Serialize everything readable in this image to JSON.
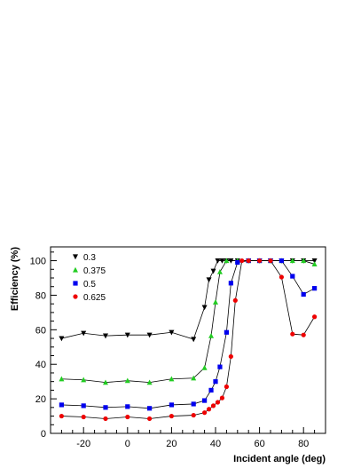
{
  "chart_data": {
    "type": "line",
    "xlabel": "Incident angle (deg)",
    "ylabel": "Efficiency (%)",
    "xlim": [
      -35,
      90
    ],
    "ylim": [
      0,
      108
    ],
    "xticks": [
      -20,
      0,
      20,
      40,
      60,
      80
    ],
    "yticks": [
      0,
      20,
      40,
      60,
      80,
      100
    ],
    "legend_position": "top-left",
    "grid": false,
    "series": [
      {
        "name": "0.3",
        "color": "#000000",
        "marker": "triangle-down",
        "x": [
          -30,
          -20,
          -10,
          0,
          10,
          20,
          30,
          35,
          37,
          39,
          41,
          43,
          45,
          47,
          50,
          55,
          60,
          65,
          70,
          75,
          80,
          85
        ],
        "y": [
          55,
          58,
          56.5,
          57,
          57,
          58.5,
          54.5,
          73,
          89,
          94,
          100,
          100,
          100,
          100,
          100,
          100,
          100,
          100,
          100,
          100,
          100,
          100
        ]
      },
      {
        "name": "0.375",
        "color": "#22cc22",
        "marker": "triangle-up",
        "x": [
          -30,
          -20,
          -10,
          0,
          10,
          20,
          30,
          35,
          38,
          40,
          42,
          45,
          50,
          55,
          60,
          65,
          70,
          75,
          80,
          85
        ],
        "y": [
          31.5,
          31,
          29.5,
          30.5,
          29.5,
          31.5,
          32,
          38,
          56.5,
          76,
          93.5,
          100,
          100,
          100,
          100,
          100,
          100,
          100,
          100,
          98
        ]
      },
      {
        "name": "0.5",
        "color": "#0000ee",
        "marker": "square",
        "x": [
          -30,
          -20,
          -10,
          0,
          10,
          20,
          30,
          35,
          38,
          40,
          42,
          45,
          47,
          50,
          55,
          60,
          65,
          70,
          75,
          80,
          85
        ],
        "y": [
          16.5,
          16,
          15,
          15.5,
          14.5,
          16.5,
          17,
          19,
          25,
          30,
          38.5,
          58.5,
          87,
          99,
          100,
          100,
          100,
          100,
          91,
          80.5,
          84
        ]
      },
      {
        "name": "0.625",
        "color": "#ee0000",
        "marker": "circle",
        "x": [
          -30,
          -20,
          -10,
          0,
          10,
          20,
          30,
          35,
          37,
          39,
          41,
          43,
          45,
          47,
          49,
          52,
          55,
          60,
          65,
          70,
          75,
          80,
          85
        ],
        "y": [
          10,
          9.5,
          8.5,
          9.5,
          8.5,
          10,
          10.5,
          12,
          14,
          16,
          18,
          20.5,
          27,
          44.5,
          77,
          100,
          100,
          100,
          100,
          90.5,
          57.5,
          57,
          67.5
        ]
      }
    ]
  }
}
